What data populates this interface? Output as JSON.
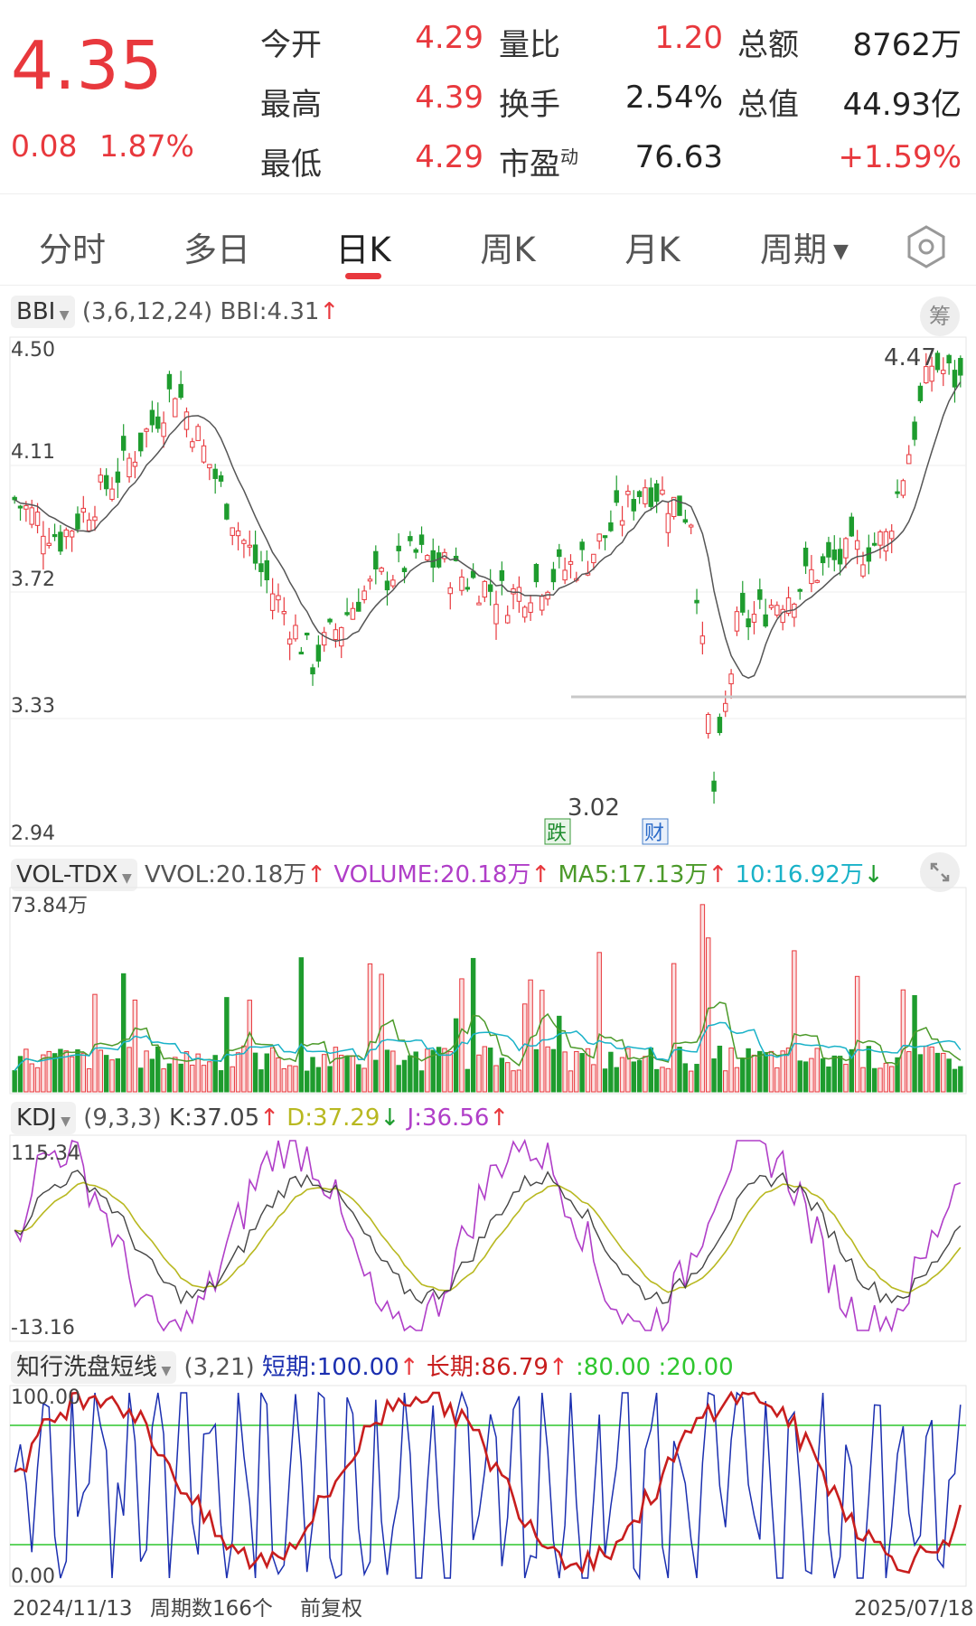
{
  "quote": {
    "price": "4.35",
    "change": "0.08",
    "change_pct": "1.87%",
    "stats": [
      {
        "label": "今开",
        "value": "4.29",
        "color": "red"
      },
      {
        "label": "最高",
        "value": "4.39",
        "color": "red"
      },
      {
        "label": "最低",
        "value": "4.29",
        "color": "red"
      },
      {
        "label": "量比",
        "value": "1.20",
        "color": "red"
      },
      {
        "label": "换手",
        "value": "2.54%",
        "color": "dark"
      },
      {
        "label": "市盈",
        "sup": "动",
        "value": "76.63",
        "color": "dark"
      },
      {
        "label": "总额",
        "value": "8762万",
        "color": "dark"
      },
      {
        "label": "总值",
        "value": "44.93亿",
        "color": "dark"
      },
      {
        "label": "",
        "value": "+1.59%",
        "color": "red"
      }
    ]
  },
  "tabs": [
    "分时",
    "多日",
    "日K",
    "周K",
    "月K",
    "周期"
  ],
  "active_tab": "日K",
  "icons": {
    "settings": "hexagon-gear-icon",
    "chip": "筹",
    "expand": "expand-icon",
    "dropdown": "triangle-down-icon"
  },
  "bbi": {
    "name": "BBI",
    "params": "(3,6,12,24)",
    "value_label": "BBI:4.31",
    "arrow": "↑",
    "y_ticks": [
      "4.50",
      "4.11",
      "3.72",
      "3.33",
      "2.94"
    ],
    "high_label": "4.47",
    "low_label": "3.02",
    "badge_drop": "跌",
    "badge_finance": "财"
  },
  "vol": {
    "name": "VOL-TDX",
    "vvol": "VVOL:20.18万",
    "volume": "VOLUME:20.18万",
    "ma5": "MA5:17.13万",
    "ma10": "10:16.92万",
    "arr_up": "↑",
    "arr_down": "↓",
    "max_label": "73.84万"
  },
  "kdj": {
    "name": "KDJ",
    "params": "(9,3,3)",
    "k": "K:37.05",
    "d": "D:37.29",
    "j": "J:36.56",
    "arr_up": "↑",
    "arr_down": "↓",
    "max_label": "115.34",
    "min_label": "-13.16"
  },
  "wash": {
    "name": "知行洗盘短线",
    "params": "(3,21)",
    "short": "短期:100.00",
    "long": "长期:86.79",
    "arr_up": "↑",
    "l80": ":80.00",
    "l20": ":20.00",
    "max_label": "100.00",
    "min_label": "0.00"
  },
  "footer": {
    "start_date": "2024/11/13",
    "period_count": "周期数166个",
    "adjust": "前复权",
    "end_date": "2025/07/18"
  },
  "colors": {
    "up": "#e8383d",
    "down": "#1e9c2e",
    "bbi_line": "#555555",
    "ma5": "#4c9a2a",
    "ma10": "#19b2c8",
    "kdj_k": "#444444",
    "kdj_d": "#b8b820",
    "kdj_j": "#b03ec8",
    "short": "#1b2fb0",
    "long": "#c81e1e",
    "level": "#2ec62e"
  }
}
